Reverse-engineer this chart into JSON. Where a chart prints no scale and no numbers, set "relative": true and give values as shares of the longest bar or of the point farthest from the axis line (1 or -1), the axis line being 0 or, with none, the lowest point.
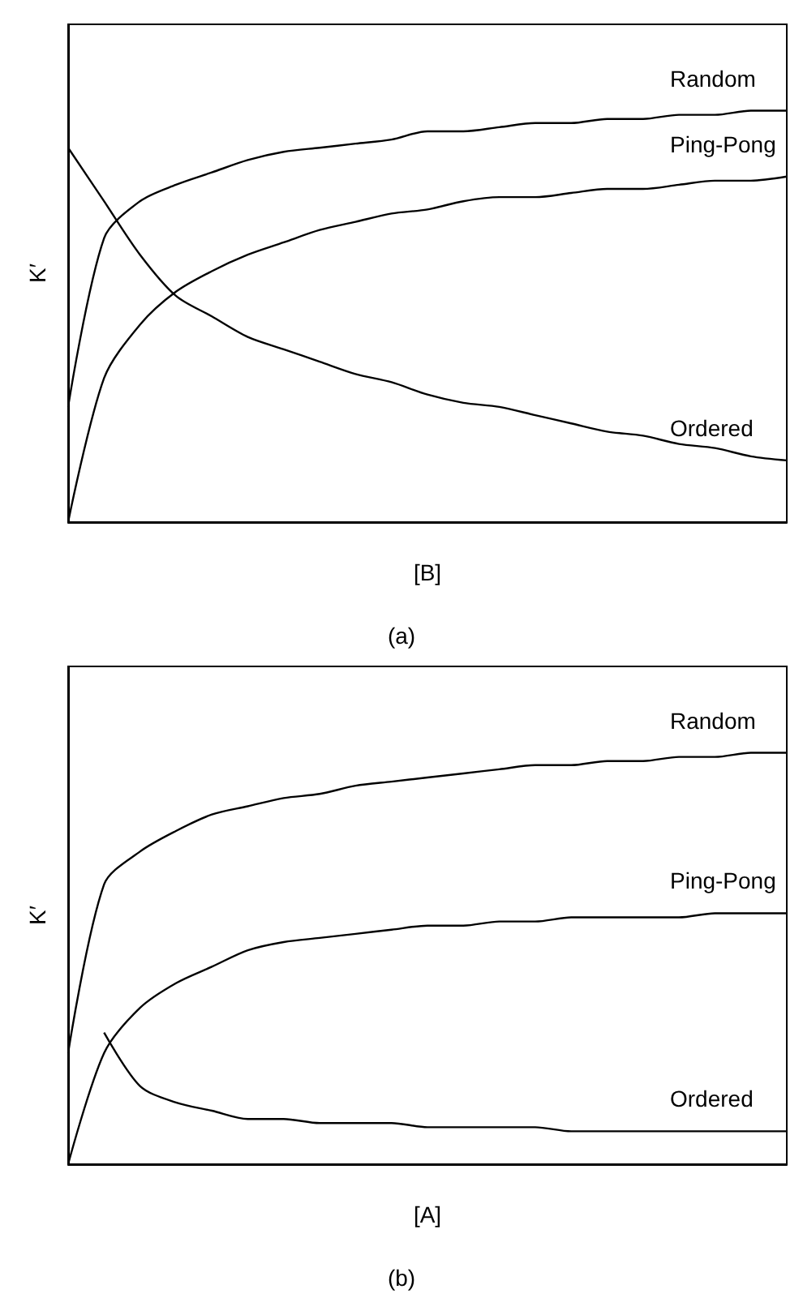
{
  "chart_data": [
    {
      "type": "line",
      "title": "(a)",
      "xlabel": "[B]",
      "ylabel": "K′",
      "relative": true,
      "grid": false,
      "legend": false,
      "marker": "none",
      "line_style": "solid",
      "categories": [
        null,
        null,
        null,
        null,
        null,
        null,
        null,
        null,
        null,
        null,
        null,
        null,
        null,
        null,
        null,
        null,
        null,
        null,
        null,
        null,
        null
      ],
      "series": [
        {
          "name": "Random",
          "color": "#000000",
          "values": [
            0.28,
            0.69,
            0.78,
            0.82,
            0.85,
            0.88,
            0.9,
            0.91,
            0.92,
            0.93,
            0.95,
            0.95,
            0.96,
            0.97,
            0.97,
            0.98,
            0.98,
            0.99,
            0.99,
            1.0,
            1.0
          ]
        },
        {
          "name": "Ping-Pong",
          "color": "#000000",
          "values": [
            0,
            0.35,
            0.48,
            0.56,
            0.61,
            0.65,
            0.68,
            0.71,
            0.73,
            0.75,
            0.76,
            0.78,
            0.79,
            0.79,
            0.8,
            0.81,
            0.81,
            0.82,
            0.83,
            0.83,
            0.84
          ]
        },
        {
          "name": "Ordered",
          "color": "#000000",
          "values": [
            0.91,
            0.78,
            0.65,
            0.55,
            0.5,
            0.45,
            0.42,
            0.39,
            0.36,
            0.34,
            0.31,
            0.29,
            0.28,
            0.26,
            0.24,
            0.22,
            0.21,
            0.19,
            0.18,
            0.16,
            0.15
          ]
        }
      ]
    },
    {
      "type": "line",
      "title": "(b)",
      "xlabel": "[A]",
      "ylabel": "K′",
      "relative": true,
      "grid": false,
      "legend": false,
      "marker": "none",
      "line_style": "solid",
      "categories": [
        null,
        null,
        null,
        null,
        null,
        null,
        null,
        null,
        null,
        null,
        null,
        null,
        null,
        null,
        null,
        null,
        null,
        null,
        null,
        null,
        null
      ],
      "series": [
        {
          "name": "Random",
          "color": "#000000",
          "values": [
            0.27,
            0.68,
            0.76,
            0.81,
            0.85,
            0.87,
            0.89,
            0.9,
            0.92,
            0.93,
            0.94,
            0.95,
            0.96,
            0.97,
            0.97,
            0.98,
            0.98,
            0.99,
            0.99,
            1.0,
            1.0
          ]
        },
        {
          "name": "Ping-Pong",
          "color": "#000000",
          "values": [
            0,
            0.27,
            0.38,
            0.44,
            0.48,
            0.52,
            0.54,
            0.55,
            0.56,
            0.57,
            0.58,
            0.58,
            0.59,
            0.59,
            0.6,
            0.6,
            0.6,
            0.6,
            0.61,
            0.61,
            0.61
          ]
        },
        {
          "name": "Ordered",
          "color": "#000000",
          "values": [
            null,
            0.32,
            0.19,
            0.15,
            0.13,
            0.11,
            0.11,
            0.1,
            0.1,
            0.1,
            0.09,
            0.09,
            0.09,
            0.09,
            0.08,
            0.08,
            0.08,
            0.08,
            0.08,
            0.08,
            0.08
          ]
        }
      ]
    }
  ]
}
